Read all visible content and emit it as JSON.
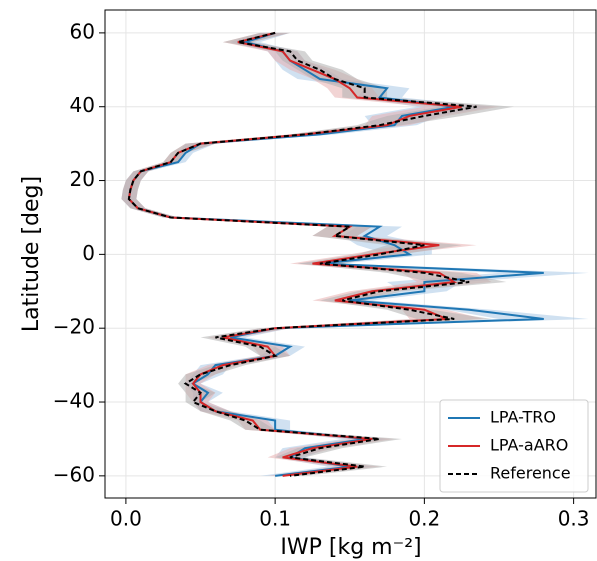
{
  "chart_data": {
    "type": "line",
    "xlabel": "IWP [kg m⁻²]",
    "ylabel": "Latitude [deg]",
    "xlim": [
      -0.014,
      0.315
    ],
    "ylim": [
      -66,
      66.2
    ],
    "xticks": [
      {
        "value": 0,
        "label": "0.0"
      },
      0.1,
      0.2,
      0.3
    ],
    "yticks": [
      {
        "value": -60,
        "label": "−60"
      },
      {
        "value": -40,
        "label": "−40"
      },
      {
        "value": -20,
        "label": "−20"
      },
      0,
      20,
      40,
      60
    ],
    "grid": true,
    "legend": "lower right",
    "y": [
      60,
      57.5,
      55,
      52.5,
      50,
      47.5,
      45,
      42.5,
      40,
      37.5,
      35,
      32.5,
      30,
      27.5,
      25,
      22.5,
      20,
      17.5,
      15,
      12.5,
      10,
      7.5,
      5,
      2.5,
      0,
      -2.5,
      -5,
      -7.5,
      -10,
      -12.5,
      -15,
      -17.5,
      -20,
      -22.5,
      -25,
      -27.5,
      -30,
      -32.5,
      -35,
      -37.5,
      -40,
      -42.5,
      -45,
      -47.5,
      -50,
      -52.5,
      -55,
      -57.5,
      -60
    ],
    "series": [
      {
        "name": "LPA-TRO",
        "color": "#1f77b4",
        "band_color": "#a9c9e6",
        "dash": "solid",
        "values": [
          0.1,
          0.08,
          0.105,
          0.11,
          0.12,
          0.13,
          0.175,
          0.17,
          0.22,
          0.185,
          0.18,
          0.13,
          0.05,
          0.04,
          0.035,
          0.01,
          0.005,
          0.003,
          0.002,
          0.008,
          0.03,
          0.17,
          0.16,
          0.18,
          0.19,
          0.13,
          0.28,
          0.2,
          0.2,
          0.15,
          0.23,
          0.28,
          0.1,
          0.07,
          0.11,
          0.1,
          0.06,
          0.055,
          0.045,
          0.055,
          0.05,
          0.06,
          0.1,
          0.1,
          0.16,
          0.12,
          0.11,
          0.15,
          0.1
        ],
        "spread": [
          0.01,
          0.01,
          0.01,
          0.01,
          0.015,
          0.015,
          0.015,
          0.015,
          0.025,
          0.025,
          0.015,
          0.01,
          0.01,
          0.005,
          0.005,
          0.005,
          0.005,
          0.005,
          0.005,
          0.005,
          0.005,
          0.015,
          0.015,
          0.025,
          0.015,
          0.015,
          0.03,
          0.025,
          0.015,
          0.015,
          0.015,
          0.03,
          0.01,
          0.01,
          0.01,
          0.01,
          0.01,
          0.01,
          0.005,
          0.01,
          0.005,
          0.01,
          0.01,
          0.01,
          0.015,
          0.015,
          0.01,
          0.015,
          0.01
        ]
      },
      {
        "name": "LPA-aARO",
        "color": "#d62728",
        "band_color": "#e8b0b0",
        "dash": "solid",
        "values": [
          0.1,
          0.075,
          0.105,
          0.11,
          0.125,
          0.14,
          0.15,
          0.155,
          0.225,
          0.19,
          0.175,
          0.12,
          0.05,
          0.035,
          0.03,
          0.01,
          0.005,
          0.003,
          0.002,
          0.008,
          0.03,
          0.15,
          0.14,
          0.21,
          0.165,
          0.125,
          0.21,
          0.22,
          0.165,
          0.14,
          0.2,
          0.215,
          0.1,
          0.065,
          0.095,
          0.1,
          0.065,
          0.05,
          0.045,
          0.05,
          0.05,
          0.06,
          0.085,
          0.09,
          0.165,
          0.125,
          0.105,
          0.155,
          0.105
        ],
        "spread": [
          0.01,
          0.01,
          0.01,
          0.01,
          0.015,
          0.015,
          0.015,
          0.015,
          0.025,
          0.025,
          0.015,
          0.01,
          0.01,
          0.005,
          0.005,
          0.005,
          0.005,
          0.005,
          0.005,
          0.005,
          0.005,
          0.015,
          0.015,
          0.025,
          0.015,
          0.015,
          0.025,
          0.025,
          0.015,
          0.015,
          0.015,
          0.025,
          0.01,
          0.01,
          0.01,
          0.01,
          0.01,
          0.01,
          0.005,
          0.01,
          0.005,
          0.01,
          0.01,
          0.01,
          0.015,
          0.015,
          0.01,
          0.015,
          0.01
        ]
      },
      {
        "name": "Reference",
        "color": "#000000",
        "band_color": "#b0b0b0",
        "dash": "dashed",
        "values": [
          0.1,
          0.075,
          0.11,
          0.115,
          0.13,
          0.14,
          0.16,
          0.16,
          0.235,
          0.2,
          0.17,
          0.12,
          0.05,
          0.035,
          0.03,
          0.01,
          0.005,
          0.003,
          0.002,
          0.008,
          0.03,
          0.15,
          0.14,
          0.2,
          0.17,
          0.13,
          0.2,
          0.23,
          0.17,
          0.145,
          0.19,
          0.22,
          0.1,
          0.06,
          0.09,
          0.1,
          0.07,
          0.05,
          0.04,
          0.05,
          0.045,
          0.06,
          0.08,
          0.09,
          0.17,
          0.13,
          0.11,
          0.16,
          0.11
        ],
        "spread": [
          0.01,
          0.01,
          0.01,
          0.01,
          0.015,
          0.015,
          0.015,
          0.015,
          0.025,
          0.025,
          0.015,
          0.01,
          0.01,
          0.005,
          0.005,
          0.005,
          0.005,
          0.005,
          0.005,
          0.005,
          0.005,
          0.015,
          0.015,
          0.025,
          0.015,
          0.015,
          0.025,
          0.025,
          0.015,
          0.015,
          0.015,
          0.025,
          0.01,
          0.01,
          0.01,
          0.01,
          0.01,
          0.01,
          0.005,
          0.01,
          0.005,
          0.01,
          0.01,
          0.01,
          0.015,
          0.015,
          0.01,
          0.015,
          0.01
        ]
      }
    ]
  }
}
